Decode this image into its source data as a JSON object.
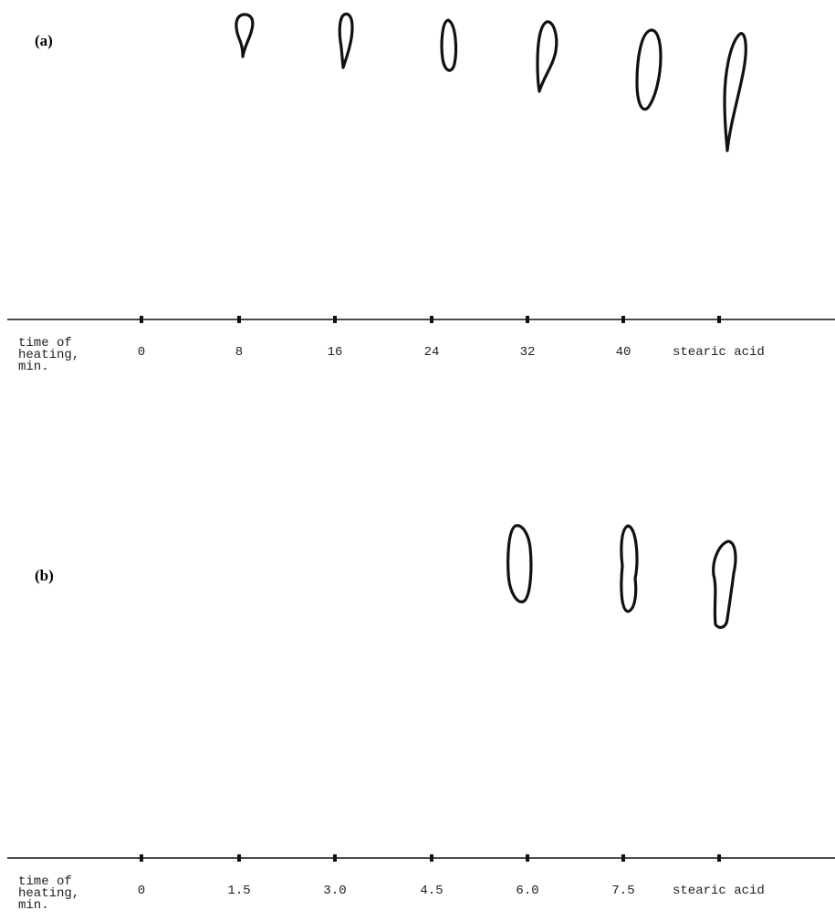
{
  "panels": [
    {
      "label": "(a)",
      "axis_label": [
        "time of",
        "heating,",
        "min."
      ],
      "lanes": [
        "0",
        "8",
        "16",
        "24",
        "32",
        "40",
        "stearic acid"
      ]
    },
    {
      "label": "(b)",
      "axis_label": [
        "time of",
        "heating,",
        "min."
      ],
      "lanes": [
        "0",
        "1.5",
        "3.0",
        "4.5",
        "6.0",
        "7.5",
        "stearic acid"
      ]
    }
  ]
}
